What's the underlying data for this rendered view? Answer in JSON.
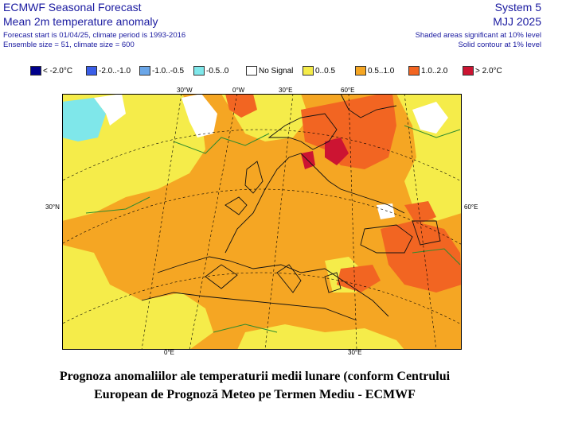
{
  "header": {
    "title": "ECMWF Seasonal Forecast",
    "subtitle": "Mean 2m temperature anomaly",
    "forecast_info": "Forecast start is 01/04/25, climate period is 1993-2016",
    "ensemble_info": "Ensemble size = 51, climate size = 600",
    "system": "System 5",
    "period": "MJJ 2025",
    "shading_note": "Shaded areas significant at 10% level",
    "contour_note": "Solid contour at 1% level"
  },
  "legend": [
    {
      "label": "< -2.0°C",
      "color": "#00008b"
    },
    {
      "label": "-2.0..-1.0",
      "color": "#3a5ee8"
    },
    {
      "label": "-1.0..-0.5",
      "color": "#6aa6e8"
    },
    {
      "label": "-0.5..0",
      "color": "#7fe7ea"
    },
    {
      "label": "No Signal",
      "color": "#ffffff"
    },
    {
      "label": "0..0.5",
      "color": "#f5ec4a"
    },
    {
      "label": "0.5..1.0",
      "color": "#f5a623"
    },
    {
      "label": "1.0..2.0",
      "color": "#f26522"
    },
    {
      "label": "> 2.0°C",
      "color": "#cc1432"
    }
  ],
  "map": {
    "top_lon_labels": [
      "30°W",
      "0°W",
      "30°E",
      "60°E"
    ],
    "left_lat_label": "30°N",
    "right_lat_label": "60°E",
    "bottom_lon_labels": [
      "0°E",
      "30°E"
    ]
  },
  "caption": {
    "line1": "Prognoza anomaliilor ale temperaturii medii lunare (conform Centrului",
    "line2": "European de Prognoză Meteo pe Termen Mediu - ECMWF"
  }
}
